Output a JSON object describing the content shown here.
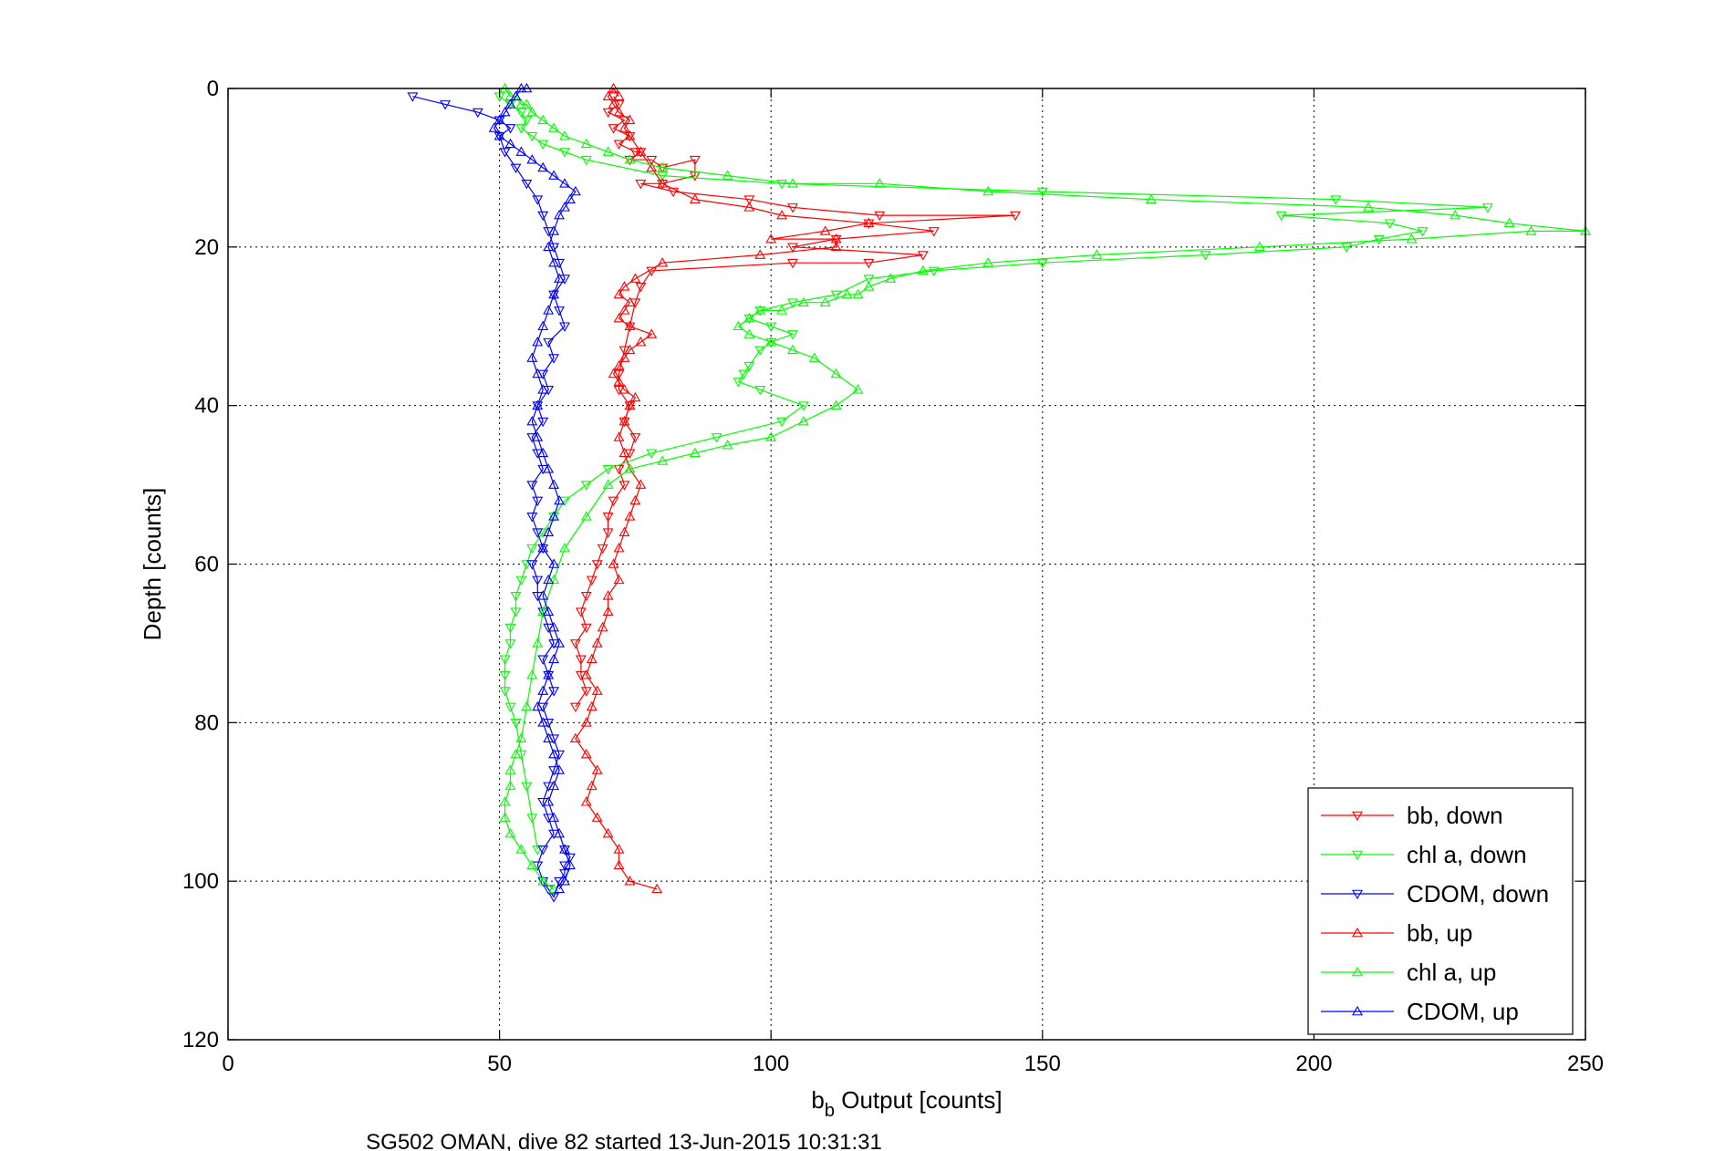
{
  "chart_data": {
    "type": "line",
    "title": "",
    "xlabel_main": "b",
    "xlabel_sub": "b",
    "xlabel_rest": " Output [counts]",
    "ylabel": "Depth [counts]",
    "caption": "SG502 OMAN, dive 82 started 13-Jun-2015 10:31:31",
    "xlim": [
      0,
      250
    ],
    "ylim": [
      0,
      120
    ],
    "y_reversed": true,
    "xticks": [
      0,
      50,
      100,
      150,
      200,
      250
    ],
    "yticks": [
      0,
      20,
      40,
      60,
      80,
      100,
      120
    ],
    "grid": true,
    "legend_position": "bottom-right",
    "series": [
      {
        "name": "bb, down",
        "color": "#ff0000",
        "marker": "triangle-down",
        "x": [
          71,
          72,
          70,
          73,
          71,
          74,
          72,
          75,
          76,
          74,
          78,
          80,
          86,
          86,
          80,
          76,
          82,
          96,
          104,
          120,
          145,
          118,
          130,
          112,
          104,
          128,
          118,
          104,
          78,
          76,
          75,
          74,
          73,
          72,
          72,
          74,
          73,
          75,
          74,
          72,
          73,
          71,
          70,
          70,
          69,
          68,
          67,
          66,
          65,
          66,
          64,
          65,
          65,
          66,
          64
        ],
        "y": [
          1,
          2,
          3,
          4,
          5,
          6,
          7,
          8,
          8,
          9,
          9,
          10,
          9,
          11,
          12,
          12,
          13,
          14,
          15,
          16,
          16,
          17,
          18,
          19,
          20,
          21,
          22,
          22,
          23,
          25,
          27,
          30,
          33,
          36,
          38,
          40,
          42,
          44,
          46,
          48,
          50,
          52,
          54,
          56,
          58,
          60,
          62,
          64,
          66,
          68,
          70,
          72,
          74,
          76,
          78
        ]
      },
      {
        "name": "chl a, down",
        "color": "#00ff00",
        "marker": "triangle-down",
        "x": [
          50,
          52,
          54,
          55,
          54,
          56,
          58,
          62,
          66,
          80,
          102,
          150,
          204,
          232,
          194,
          214,
          220,
          212,
          206,
          180,
          150,
          130,
          118,
          112,
          104,
          98,
          96,
          100,
          104,
          100,
          98,
          96,
          95,
          94,
          98,
          106,
          102,
          90,
          78,
          70,
          66,
          62,
          60,
          58,
          56,
          55,
          54,
          53,
          53,
          52,
          52,
          51,
          51,
          51,
          52,
          53,
          54,
          55,
          56,
          57
        ],
        "y": [
          1,
          2,
          3,
          4,
          5,
          6,
          7,
          8,
          9,
          11,
          12,
          13,
          14,
          15,
          16,
          17,
          18,
          19,
          20,
          21,
          22,
          23,
          24,
          26,
          27,
          28,
          29,
          30,
          31,
          32,
          33,
          35,
          36,
          37,
          38,
          40,
          42,
          44,
          46,
          48,
          50,
          52,
          54,
          56,
          58,
          60,
          62,
          64,
          66,
          68,
          70,
          72,
          74,
          76,
          78,
          80,
          84,
          88,
          92,
          96
        ]
      },
      {
        "name": "CDOM, down",
        "color": "#0000ff",
        "marker": "triangle-down",
        "x": [
          34,
          40,
          46,
          50,
          52,
          50,
          51,
          53,
          55,
          57,
          58,
          59,
          60,
          61,
          62,
          60,
          61,
          62,
          59,
          60,
          58,
          59,
          57,
          58,
          56,
          57,
          58,
          56,
          57,
          56,
          57,
          58,
          56,
          57,
          57,
          58,
          59,
          60,
          58,
          59,
          60,
          58,
          59,
          60,
          61,
          60,
          59,
          58,
          59,
          60,
          58,
          57,
          58,
          59,
          60,
          61,
          62,
          62,
          63,
          62
        ],
        "y": [
          1,
          2,
          3,
          4,
          5,
          6,
          8,
          10,
          12,
          14,
          16,
          18,
          20,
          22,
          24,
          26,
          28,
          30,
          32,
          34,
          36,
          38,
          40,
          42,
          44,
          46,
          48,
          50,
          52,
          54,
          56,
          58,
          60,
          62,
          64,
          66,
          68,
          70,
          72,
          74,
          76,
          78,
          80,
          82,
          84,
          86,
          88,
          90,
          92,
          94,
          96,
          98,
          100,
          101,
          102,
          100,
          99,
          98,
          97,
          96
        ]
      },
      {
        "name": "bb, up",
        "color": "#ff0000",
        "marker": "triangle-up",
        "x": [
          79,
          74,
          72,
          72,
          70,
          68,
          66,
          67,
          68,
          66,
          64,
          66,
          67,
          68,
          66,
          67,
          68,
          69,
          70,
          70,
          72,
          71,
          72,
          73,
          74,
          75,
          76,
          74,
          73,
          72,
          73,
          74,
          75,
          73,
          72,
          71,
          72,
          73,
          74,
          76,
          78,
          74,
          72,
          73,
          74,
          72,
          73,
          75,
          80,
          98,
          112,
          112,
          100,
          110,
          118,
          102,
          96,
          86,
          80,
          78,
          76,
          74,
          73,
          74,
          72,
          71,
          70,
          71,
          72
        ],
        "y": [
          101,
          100,
          98,
          96,
          94,
          92,
          90,
          88,
          86,
          84,
          82,
          80,
          78,
          76,
          74,
          72,
          70,
          68,
          66,
          64,
          62,
          60,
          58,
          56,
          54,
          52,
          50,
          48,
          46,
          44,
          42,
          40,
          39,
          38,
          37,
          36,
          35,
          34,
          33,
          32,
          31,
          30,
          29,
          28,
          27,
          26,
          25,
          24,
          22,
          21,
          20,
          19,
          19,
          18,
          17,
          16,
          15,
          14,
          12,
          10,
          8,
          6,
          5,
          4,
          3,
          2,
          1,
          0,
          1
        ]
      },
      {
        "name": "chl a, up",
        "color": "#00ff00",
        "marker": "triangle-up",
        "x": [
          60,
          58,
          56,
          54,
          52,
          51,
          51,
          52,
          52,
          53,
          54,
          55,
          56,
          57,
          58,
          60,
          62,
          66,
          70,
          74,
          80,
          86,
          92,
          100,
          106,
          112,
          116,
          112,
          108,
          104,
          100,
          96,
          94,
          96,
          98,
          102,
          106,
          110,
          114,
          116,
          118,
          122,
          128,
          140,
          160,
          190,
          218,
          240,
          250,
          236,
          226,
          210,
          170,
          140,
          120,
          104,
          92,
          80,
          74,
          70,
          66,
          62,
          60,
          58,
          56,
          55,
          54,
          53,
          52,
          51
        ],
        "y": [
          101,
          100,
          98,
          96,
          94,
          92,
          90,
          88,
          86,
          84,
          82,
          78,
          74,
          70,
          66,
          62,
          58,
          54,
          50,
          48,
          47,
          46,
          45,
          44,
          42,
          40,
          38,
          36,
          34,
          33,
          32,
          31,
          30,
          29,
          28,
          28,
          27,
          27,
          26,
          26,
          25,
          24,
          23,
          22,
          21,
          20,
          19,
          18,
          18,
          17,
          16,
          15,
          14,
          13,
          12,
          12,
          11,
          10,
          9,
          8,
          7,
          6,
          5,
          4,
          3,
          2,
          2,
          1,
          1,
          0
        ]
      },
      {
        "name": "CDOM, up",
        "color": "#0000ff",
        "marker": "triangle-up",
        "x": [
          61,
          62,
          63,
          62,
          61,
          60,
          59,
          60,
          61,
          60,
          59,
          58,
          57,
          58,
          59,
          60,
          61,
          60,
          59,
          58,
          59,
          60,
          58,
          59,
          60,
          61,
          60,
          59,
          58,
          57,
          56,
          57,
          58,
          57,
          56,
          57,
          58,
          59,
          60,
          61,
          60,
          59,
          60,
          61,
          62,
          63,
          64,
          62,
          60,
          58,
          56,
          54,
          52,
          50,
          49,
          50,
          51,
          52,
          53,
          54,
          55
        ],
        "y": [
          101,
          100,
          98,
          96,
          94,
          92,
          90,
          88,
          86,
          84,
          82,
          80,
          78,
          76,
          74,
          72,
          70,
          68,
          66,
          64,
          62,
          60,
          58,
          56,
          54,
          52,
          50,
          48,
          46,
          44,
          42,
          40,
          38,
          36,
          34,
          32,
          30,
          28,
          26,
          24,
          22,
          20,
          18,
          16,
          15,
          14,
          13,
          12,
          11,
          10,
          9,
          8,
          7,
          6,
          5,
          4,
          3,
          2,
          1,
          0,
          0
        ]
      }
    ]
  },
  "colors": {
    "red": "#ff0000",
    "green": "#00ff00",
    "blue": "#0000ff"
  }
}
